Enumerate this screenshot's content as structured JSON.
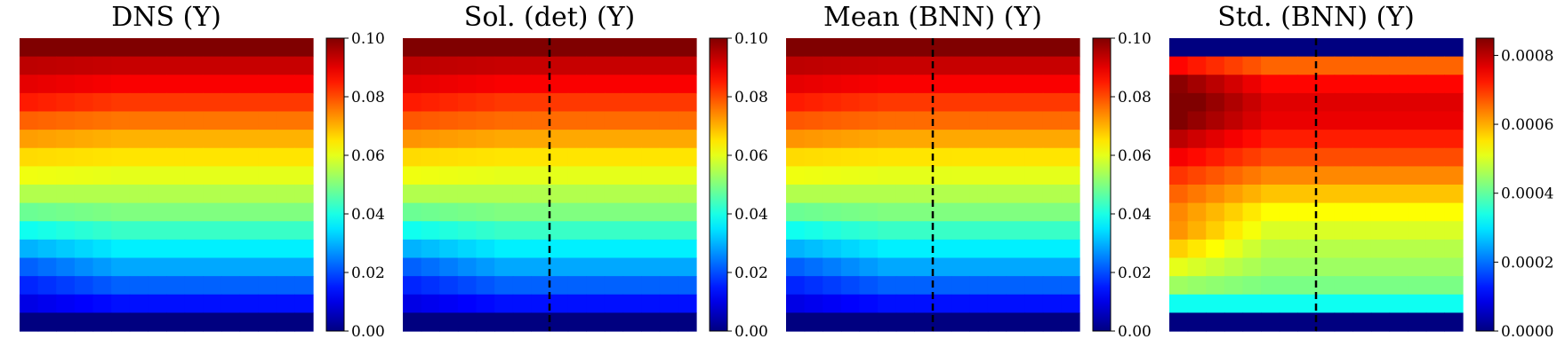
{
  "chart_data": [
    {
      "type": "heatmap",
      "title": "DNS (Y)",
      "grid_size": [
        16,
        16
      ],
      "colormap": "jet",
      "dashed_divider": false,
      "colorbar": {
        "range": [
          0,
          0.1
        ],
        "ticks": [
          0,
          0.02,
          0.04,
          0.06,
          0.08,
          0.1
        ],
        "tick_labels": [
          "0.00",
          "0.02",
          "0.04",
          "0.06",
          "0.08",
          "0.10"
        ]
      },
      "row_values": [
        0.1,
        0.093,
        0.088,
        0.082,
        0.076,
        0.07,
        0.065,
        0.06,
        0.055,
        0.05,
        0.043,
        0.036,
        0.029,
        0.022,
        0.014,
        0.0
      ],
      "left_offsets": [
        0,
        0.001,
        0.002,
        0.003,
        0.002,
        0.002,
        0.001,
        0.001,
        0.0,
        -0.002,
        -0.004,
        -0.006,
        -0.007,
        -0.006,
        -0.004,
        0
      ]
    },
    {
      "type": "heatmap",
      "title": "Sol. (det) (Y)",
      "grid_size": [
        16,
        16
      ],
      "colormap": "jet",
      "dashed_divider": true,
      "colorbar": {
        "range": [
          0,
          0.1
        ],
        "ticks": [
          0,
          0.02,
          0.04,
          0.06,
          0.08,
          0.1
        ],
        "tick_labels": [
          "0.00",
          "0.02",
          "0.04",
          "0.06",
          "0.08",
          "0.10"
        ]
      },
      "row_values": [
        0.1,
        0.093,
        0.088,
        0.082,
        0.077,
        0.071,
        0.065,
        0.06,
        0.055,
        0.05,
        0.043,
        0.036,
        0.029,
        0.022,
        0.014,
        0.0
      ],
      "left_offsets": [
        0,
        0.001,
        0.002,
        0.003,
        0.002,
        0.002,
        0.001,
        0.001,
        0.0,
        -0.002,
        -0.004,
        -0.006,
        -0.007,
        -0.006,
        -0.004,
        0
      ]
    },
    {
      "type": "heatmap",
      "title": "Mean (BNN) (Y)",
      "grid_size": [
        16,
        16
      ],
      "colormap": "jet",
      "dashed_divider": true,
      "colorbar": {
        "range": [
          0,
          0.1
        ],
        "ticks": [
          0,
          0.02,
          0.04,
          0.06,
          0.08,
          0.1
        ],
        "tick_labels": [
          "0.00",
          "0.02",
          "0.04",
          "0.06",
          "0.08",
          "0.10"
        ]
      },
      "row_values": [
        0.1,
        0.093,
        0.088,
        0.082,
        0.077,
        0.071,
        0.065,
        0.06,
        0.055,
        0.05,
        0.043,
        0.036,
        0.029,
        0.022,
        0.014,
        0.0
      ],
      "left_offsets": [
        0,
        0.001,
        0.002,
        0.003,
        0.002,
        0.002,
        0.001,
        0.001,
        0.0,
        -0.002,
        -0.004,
        -0.006,
        -0.007,
        -0.006,
        -0.004,
        0
      ]
    },
    {
      "type": "heatmap",
      "title": "Std. (BNN) (Y)",
      "grid_size": [
        16,
        16
      ],
      "colormap": "jet",
      "dashed_divider": true,
      "colorbar": {
        "range": [
          0,
          0.00085
        ],
        "ticks": [
          0,
          0.0002,
          0.0004,
          0.0006,
          0.0008
        ],
        "tick_labels": [
          "0.0000",
          "0.0002",
          "0.0004",
          "0.0006",
          "0.0008"
        ]
      },
      "row_values": [
        0.0,
        0.00066,
        0.00074,
        0.00077,
        0.00076,
        0.00072,
        0.00068,
        0.00063,
        0.00058,
        0.00053,
        0.0005,
        0.00047,
        0.00045,
        0.00042,
        0.00033,
        0.0
      ],
      "left_offsets": [
        0,
        8e-05,
        0.0001,
        0.0001,
        9e-05,
        8e-05,
        7e-05,
        7e-05,
        8e-05,
        0.0001,
        0.00012,
        0.0001,
        6e-05,
        3e-05,
        0.0,
        0
      ]
    }
  ]
}
